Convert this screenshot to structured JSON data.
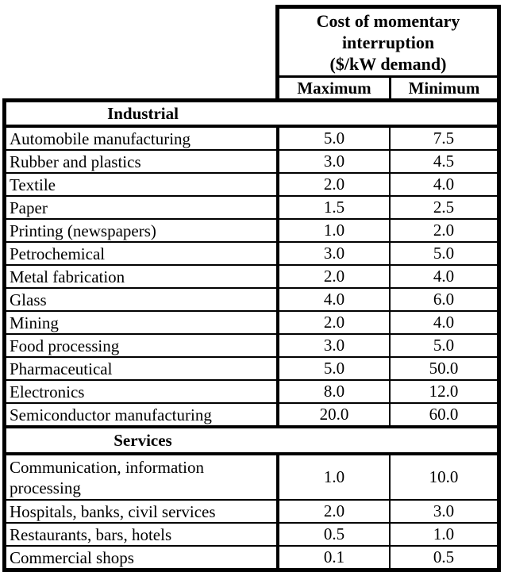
{
  "table": {
    "header": {
      "title_lines": [
        "Cost of momentary",
        "interruption",
        "($/kW demand)"
      ],
      "columns": [
        "Maximum",
        "Minimum"
      ]
    },
    "sections": [
      {
        "label": "Industrial",
        "rows": [
          {
            "name": "Automobile manufacturing",
            "max": "5.0",
            "min": "7.5"
          },
          {
            "name": "Rubber and plastics",
            "max": "3.0",
            "min": "4.5"
          },
          {
            "name": "Textile",
            "max": "2.0",
            "min": "4.0"
          },
          {
            "name": "Paper",
            "max": "1.5",
            "min": "2.5"
          },
          {
            "name": "Printing (newspapers)",
            "max": "1.0",
            "min": "2.0"
          },
          {
            "name": "Petrochemical",
            "max": "3.0",
            "min": "5.0"
          },
          {
            "name": "Metal fabrication",
            "max": "2.0",
            "min": "4.0"
          },
          {
            "name": "Glass",
            "max": "4.0",
            "min": "6.0"
          },
          {
            "name": "Mining",
            "max": "2.0",
            "min": "4.0"
          },
          {
            "name": "Food processing",
            "max": "3.0",
            "min": "5.0"
          },
          {
            "name": "Pharmaceutical",
            "max": "5.0",
            "min": "50.0"
          },
          {
            "name": "Electronics",
            "max": "8.0",
            "min": "12.0"
          },
          {
            "name": "Semiconductor manufacturing",
            "max": "20.0",
            "min": "60.0"
          }
        ]
      },
      {
        "label": "Services",
        "rows": [
          {
            "name": "Communication, information processing",
            "max": "1.0",
            "min": "10.0"
          },
          {
            "name": "Hospitals, banks, civil services",
            "max": "2.0",
            "min": "3.0"
          },
          {
            "name": "Restaurants, bars, hotels",
            "max": "0.5",
            "min": "1.0"
          },
          {
            "name": "Commercial shops",
            "max": "0.1",
            "min": "0.5"
          }
        ]
      }
    ],
    "colors": {
      "border": "#000000",
      "text": "#000000",
      "background": "#ffffff"
    }
  }
}
